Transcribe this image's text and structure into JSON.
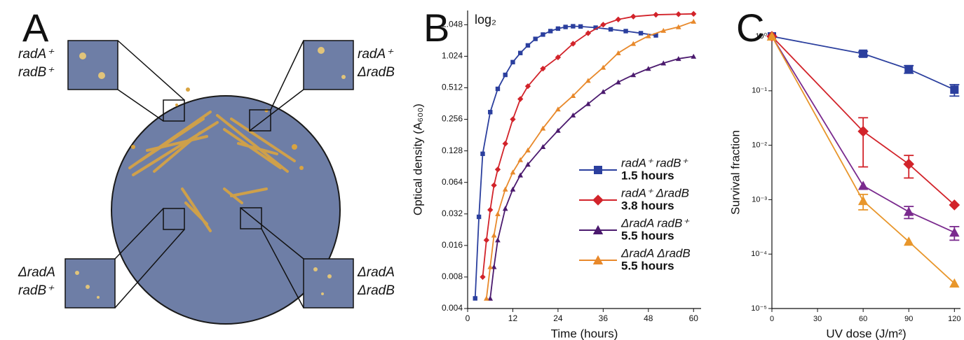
{
  "panel_a": {
    "label": "A",
    "plates": [
      {
        "lines": [
          "radA⁺",
          "radB⁺"
        ]
      },
      {
        "lines": [
          "radA⁺",
          "ΔradB"
        ]
      },
      {
        "lines": [
          "ΔradA",
          "radB⁺"
        ]
      },
      {
        "lines": [
          "ΔradA",
          "ΔradB"
        ]
      }
    ]
  },
  "chart_data": [
    {
      "type": "line",
      "panel": "B",
      "annotation": "log₂",
      "xlabel": "Time (hours)",
      "ylabel": "Optical density (A₆₀₀)",
      "yscale": "log",
      "xlim": [
        0,
        62
      ],
      "ylim": [
        0.004,
        2.8
      ],
      "xticks": [
        0,
        12,
        24,
        36,
        48,
        60
      ],
      "yticks": [
        0.004,
        0.008,
        0.016,
        0.032,
        0.064,
        0.128,
        0.256,
        0.512,
        1.024,
        2.048
      ],
      "series": [
        {
          "name": "radA⁺ radB⁺",
          "doubling_time": "1.5 hours",
          "color": "#2b3f9e",
          "marker": "square",
          "x": [
            2,
            3,
            4,
            6,
            8,
            10,
            12,
            14,
            16,
            18,
            20,
            22,
            24,
            26,
            28,
            30,
            34,
            38,
            42,
            46,
            50
          ],
          "values": [
            0.005,
            0.03,
            0.12,
            0.3,
            0.5,
            0.68,
            0.9,
            1.1,
            1.3,
            1.5,
            1.65,
            1.78,
            1.88,
            1.95,
            1.98,
            1.97,
            1.92,
            1.85,
            1.78,
            1.7,
            1.62
          ]
        },
        {
          "name": "radA⁺ ΔradB",
          "doubling_time": "3.8 hours",
          "color": "#d2232a",
          "marker": "diamond",
          "x": [
            4,
            5,
            6,
            7,
            8,
            10,
            12,
            14,
            16,
            20,
            24,
            28,
            32,
            36,
            40,
            44,
            50,
            56,
            60
          ],
          "values": [
            0.008,
            0.018,
            0.035,
            0.06,
            0.085,
            0.15,
            0.256,
            0.4,
            0.53,
            0.78,
            1.0,
            1.35,
            1.7,
            2.05,
            2.3,
            2.45,
            2.55,
            2.58,
            2.6
          ]
        },
        {
          "name": "ΔradA radB⁺",
          "doubling_time": "5.5 hours",
          "color": "#4b1a6e",
          "marker": "triangle",
          "x": [
            6,
            7,
            8,
            10,
            12,
            14,
            16,
            20,
            24,
            28,
            32,
            36,
            40,
            44,
            48,
            52,
            56,
            60
          ],
          "values": [
            0.005,
            0.01,
            0.018,
            0.036,
            0.055,
            0.075,
            0.095,
            0.14,
            0.2,
            0.28,
            0.36,
            0.47,
            0.58,
            0.68,
            0.78,
            0.88,
            0.97,
            1.02
          ]
        },
        {
          "name": "ΔradA ΔradB",
          "doubling_time": "5.5 hours",
          "color": "#e8892b",
          "marker": "triangle",
          "x": [
            5,
            6,
            7,
            8,
            10,
            12,
            14,
            16,
            20,
            24,
            28,
            32,
            36,
            40,
            44,
            48,
            52,
            56,
            60
          ],
          "values": [
            0.005,
            0.01,
            0.02,
            0.032,
            0.055,
            0.08,
            0.105,
            0.13,
            0.21,
            0.32,
            0.43,
            0.6,
            0.8,
            1.1,
            1.35,
            1.6,
            1.8,
            1.95,
            2.2
          ]
        }
      ]
    },
    {
      "type": "line",
      "panel": "C",
      "xlabel": "UV dose (J/m²)",
      "ylabel": "Survival fraction",
      "yscale": "log",
      "xlim": [
        0,
        124
      ],
      "ylim": [
        1e-05,
        1
      ],
      "xticks": [
        0,
        30,
        60,
        90,
        120
      ],
      "yticks": [
        {
          "value": 1,
          "label": "10⁰"
        },
        {
          "value": 0.1,
          "label": "10⁻¹"
        },
        {
          "value": 0.01,
          "label": "10⁻²"
        },
        {
          "value": 0.001,
          "label": "10⁻³"
        },
        {
          "value": 0.0001,
          "label": "10⁻⁴"
        },
        {
          "value": 1e-05,
          "label": "10⁻⁵"
        }
      ],
      "x": [
        0,
        60,
        90,
        120
      ],
      "series": [
        {
          "color": "#2b3f9e",
          "marker": "square",
          "values": [
            1,
            0.48,
            0.25,
            0.105
          ],
          "errors": [
            null,
            0.05,
            0.04,
            0.025
          ]
        },
        {
          "color": "#d2232a",
          "marker": "diamond",
          "values": [
            1,
            0.018,
            0.0045,
            0.0008
          ],
          "errors": [
            null,
            0.014,
            0.002,
            null
          ]
        },
        {
          "color": "#7a2a8e",
          "marker": "triangle",
          "values": [
            1,
            0.0018,
            0.0006,
            0.00025
          ],
          "errors": [
            null,
            null,
            0.00015,
            7e-05
          ]
        },
        {
          "color": "#e8962b",
          "marker": "triangle",
          "values": [
            1,
            0.00095,
            0.00017,
            2.9e-05
          ],
          "errors": [
            null,
            0.0003,
            null,
            null
          ]
        }
      ]
    }
  ]
}
